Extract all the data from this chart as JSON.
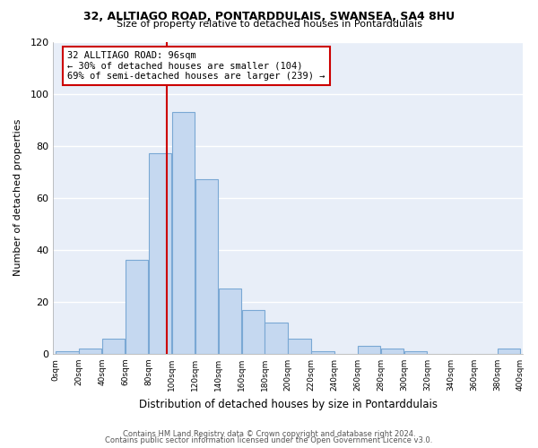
{
  "title1": "32, ALLTIAGO ROAD, PONTARDDULAIS, SWANSEA, SA4 8HU",
  "title2": "Size of property relative to detached houses in Pontarddulais",
  "xlabel": "Distribution of detached houses by size in Pontarddulais",
  "ylabel": "Number of detached properties",
  "bin_edges": [
    0,
    20,
    40,
    60,
    80,
    100,
    120,
    140,
    160,
    180,
    200,
    220,
    240,
    260,
    280,
    300,
    320,
    340,
    360,
    380,
    400
  ],
  "bar_heights": [
    1,
    2,
    6,
    36,
    77,
    93,
    67,
    25,
    17,
    12,
    6,
    1,
    0,
    3,
    2,
    1,
    0,
    0,
    0,
    2
  ],
  "bar_color": "#c5d8f0",
  "bar_edgecolor": "#7aa8d4",
  "vline_x": 96,
  "vline_color": "#cc0000",
  "annotation_text_line1": "32 ALLTIAGO ROAD: 96sqm",
  "annotation_text_line2": "← 30% of detached houses are smaller (104)",
  "annotation_text_line3": "69% of semi-detached houses are larger (239) →",
  "ylim": [
    0,
    120
  ],
  "yticks": [
    0,
    20,
    40,
    60,
    80,
    100,
    120
  ],
  "plot_bg_color": "#e8eef8",
  "fig_bg_color": "#ffffff",
  "grid_color": "#ffffff",
  "footnote1": "Contains HM Land Registry data © Crown copyright and database right 2024.",
  "footnote2": "Contains public sector information licensed under the Open Government Licence v3.0."
}
